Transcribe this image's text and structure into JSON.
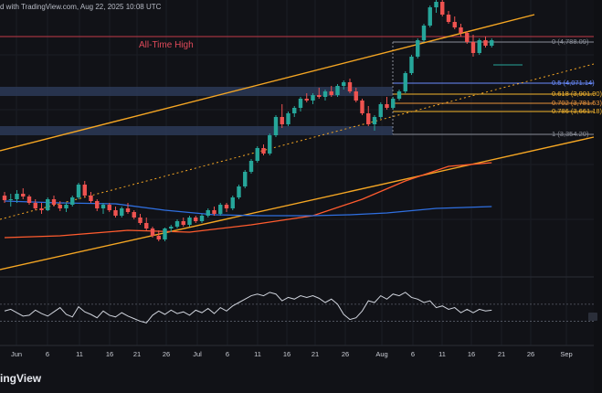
{
  "header": {
    "text": "d with TradingView.com, Aug 22, 2025 10:08 UTC"
  },
  "annotations": {
    "all_time_high": "All-Time High"
  },
  "brand": "ingView",
  "fib_levels": [
    {
      "label": "0 (4,788.09)",
      "value": 4788.09,
      "color": "#8b8f99"
    },
    {
      "label": "0.5 (4,071.14)",
      "value": 4071.14,
      "color": "#6a8cff"
    },
    {
      "label": "0.618 (3,901.90)",
      "value": 3901.9,
      "color": "#f5b52e"
    },
    {
      "label": "0.702 (3,781.53)",
      "value": 3781.53,
      "color": "#e8923a"
    },
    {
      "label": "0.786 (3,661.18)",
      "value": 3661.18,
      "color": "#f5b52e"
    },
    {
      "label": "1 (3,354.20)",
      "value": 3354.2,
      "color": "#8b8f99"
    }
  ],
  "chart_data": {
    "type": "candlestick",
    "colors": {
      "up": "#26a69a",
      "down": "#ef5350",
      "ma_fast": "#ff5b2e",
      "ma_slow": "#2f6fe0",
      "channel": "#f5a623",
      "zones": "#2c3a57",
      "rsi": "#cfd3dc"
    },
    "x_ticks": [
      "Jun",
      "6",
      "11",
      "16",
      "21",
      "26",
      "Jul",
      "6",
      "11",
      "16",
      "21",
      "26",
      "Aug",
      "6",
      "11",
      "16",
      "21",
      "26",
      "Sep"
    ],
    "ohlc": [
      [
        2640,
        2680,
        2560,
        2590
      ],
      [
        2590,
        2660,
        2520,
        2600
      ],
      [
        2600,
        2700,
        2560,
        2660
      ],
      [
        2660,
        2720,
        2600,
        2630
      ],
      [
        2630,
        2650,
        2540,
        2560
      ],
      [
        2560,
        2600,
        2480,
        2500
      ],
      [
        2500,
        2560,
        2440,
        2480
      ],
      [
        2480,
        2620,
        2470,
        2600
      ],
      [
        2600,
        2640,
        2520,
        2540
      ],
      [
        2540,
        2580,
        2470,
        2500
      ],
      [
        2500,
        2560,
        2460,
        2540
      ],
      [
        2540,
        2640,
        2520,
        2620
      ],
      [
        2620,
        2780,
        2600,
        2760
      ],
      [
        2760,
        2800,
        2620,
        2640
      ],
      [
        2640,
        2680,
        2560,
        2580
      ],
      [
        2580,
        2600,
        2470,
        2500
      ],
      [
        2500,
        2560,
        2440,
        2540
      ],
      [
        2540,
        2560,
        2460,
        2480
      ],
      [
        2480,
        2520,
        2400,
        2420
      ],
      [
        2420,
        2520,
        2400,
        2500
      ],
      [
        2500,
        2560,
        2440,
        2460
      ],
      [
        2460,
        2480,
        2380,
        2400
      ],
      [
        2400,
        2440,
        2320,
        2340
      ],
      [
        2340,
        2400,
        2260,
        2280
      ],
      [
        2280,
        2300,
        2180,
        2200
      ],
      [
        2200,
        2260,
        2140,
        2160
      ],
      [
        2160,
        2290,
        2140,
        2280
      ],
      [
        2280,
        2320,
        2240,
        2300
      ],
      [
        2300,
        2380,
        2280,
        2360
      ],
      [
        2360,
        2400,
        2300,
        2320
      ],
      [
        2320,
        2420,
        2300,
        2400
      ],
      [
        2400,
        2420,
        2340,
        2360
      ],
      [
        2360,
        2440,
        2340,
        2420
      ],
      [
        2420,
        2500,
        2400,
        2480
      ],
      [
        2480,
        2520,
        2420,
        2440
      ],
      [
        2440,
        2560,
        2420,
        2540
      ],
      [
        2540,
        2560,
        2460,
        2500
      ],
      [
        2500,
        2640,
        2480,
        2620
      ],
      [
        2620,
        2760,
        2600,
        2740
      ],
      [
        2740,
        2920,
        2720,
        2900
      ],
      [
        2900,
        3040,
        2880,
        3020
      ],
      [
        3020,
        3180,
        3000,
        3160
      ],
      [
        3160,
        3200,
        3080,
        3100
      ],
      [
        3100,
        3320,
        3080,
        3300
      ],
      [
        3300,
        3520,
        3280,
        3500
      ],
      [
        3500,
        3640,
        3380,
        3420
      ],
      [
        3420,
        3560,
        3400,
        3540
      ],
      [
        3540,
        3620,
        3500,
        3600
      ],
      [
        3600,
        3720,
        3560,
        3700
      ],
      [
        3700,
        3760,
        3660,
        3680
      ],
      [
        3680,
        3760,
        3640,
        3740
      ],
      [
        3740,
        3820,
        3700,
        3720
      ],
      [
        3720,
        3800,
        3680,
        3780
      ],
      [
        3780,
        3840,
        3720,
        3740
      ],
      [
        3740,
        3860,
        3720,
        3840
      ],
      [
        3840,
        3900,
        3800,
        3880
      ],
      [
        3880,
        3920,
        3760,
        3780
      ],
      [
        3780,
        3820,
        3660,
        3680
      ],
      [
        3680,
        3700,
        3520,
        3540
      ],
      [
        3540,
        3620,
        3400,
        3420
      ],
      [
        3420,
        3520,
        3350,
        3500
      ],
      [
        3500,
        3660,
        3480,
        3640
      ],
      [
        3640,
        3720,
        3580,
        3600
      ],
      [
        3600,
        3720,
        3580,
        3700
      ],
      [
        3700,
        3800,
        3680,
        3780
      ],
      [
        3780,
        4000,
        3760,
        3980
      ],
      [
        3980,
        4180,
        3960,
        4160
      ],
      [
        4160,
        4360,
        4140,
        4340
      ],
      [
        4340,
        4520,
        4320,
        4500
      ],
      [
        4500,
        4720,
        4480,
        4700
      ],
      [
        4700,
        4790,
        4640,
        4760
      ],
      [
        4760,
        4780,
        4600,
        4620
      ],
      [
        4620,
        4660,
        4520,
        4540
      ],
      [
        4540,
        4600,
        4460,
        4480
      ],
      [
        4480,
        4520,
        4380,
        4420
      ],
      [
        4420,
        4440,
        4300,
        4320
      ],
      [
        4320,
        4400,
        4160,
        4200
      ],
      [
        4200,
        4360,
        4180,
        4340
      ],
      [
        4340,
        4380,
        4260,
        4280
      ],
      [
        4280,
        4360,
        4260,
        4340
      ]
    ],
    "sma_fast": [
      [
        0,
        2180
      ],
      [
        9,
        2200
      ],
      [
        20,
        2260
      ],
      [
        30,
        2240
      ],
      [
        40,
        2320
      ],
      [
        50,
        2420
      ],
      [
        58,
        2600
      ],
      [
        65,
        2800
      ],
      [
        72,
        2960
      ],
      [
        79,
        3000
      ]
    ],
    "sma_slow": [
      [
        0,
        2580
      ],
      [
        9,
        2560
      ],
      [
        18,
        2550
      ],
      [
        26,
        2480
      ],
      [
        34,
        2430
      ],
      [
        42,
        2420
      ],
      [
        50,
        2420
      ],
      [
        56,
        2430
      ],
      [
        62,
        2450
      ],
      [
        70,
        2500
      ],
      [
        79,
        2520
      ]
    ],
    "rsi": [
      52,
      54,
      50,
      46,
      47,
      53,
      49,
      46,
      51,
      56,
      48,
      45,
      57,
      51,
      48,
      44,
      52,
      47,
      45,
      50,
      46,
      43,
      40,
      38,
      47,
      52,
      48,
      53,
      49,
      51,
      47,
      53,
      50,
      55,
      49,
      56,
      52,
      58,
      62,
      66,
      70,
      72,
      70,
      74,
      72,
      64,
      68,
      66,
      70,
      68,
      70,
      67,
      62,
      66,
      60,
      48,
      42,
      44,
      52,
      64,
      62,
      70,
      66,
      72,
      70,
      74,
      68,
      66,
      62,
      64,
      56,
      58,
      54,
      56,
      50,
      54,
      50,
      54,
      52,
      53
    ],
    "rsi_band": [
      40,
      60
    ]
  }
}
